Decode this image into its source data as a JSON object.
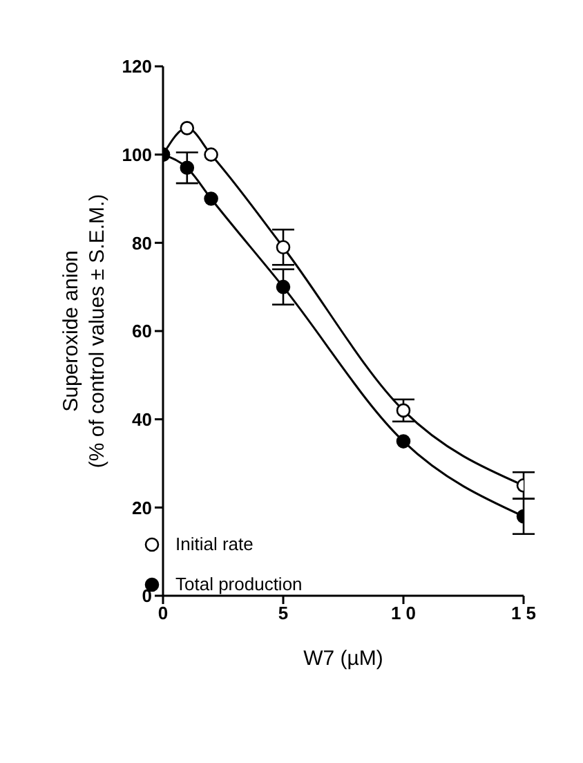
{
  "chart_data": {
    "type": "line",
    "xlabel": "W7 (µM)",
    "ylabel": "Superoxide anion\n(% of control values ± S.E.M.)",
    "x": [
      0,
      1,
      2,
      5,
      10,
      15
    ],
    "series": [
      {
        "name": "Initial rate",
        "color": "#000000",
        "values": [
          100,
          106,
          100,
          79,
          42,
          25
        ],
        "errors": [
          null,
          null,
          null,
          4,
          2.5,
          3
        ]
      },
      {
        "name": "Total production",
        "color": "#000000",
        "values": [
          100,
          97,
          90,
          70,
          35,
          18
        ],
        "errors": [
          null,
          3.5,
          null,
          4,
          null,
          4
        ]
      }
    ],
    "xlim": [
      0,
      15
    ],
    "xticks": [
      0,
      5,
      {
        "value": 10,
        "label": "1 0"
      },
      {
        "value": 15,
        "label": "1 5"
      }
    ],
    "ylim": [
      0,
      120
    ],
    "yticks": [
      0,
      20,
      40,
      60,
      80,
      100,
      120
    ],
    "grid": false,
    "legend": "bottom left",
    "marker": "circle",
    "line_style": "solid"
  }
}
